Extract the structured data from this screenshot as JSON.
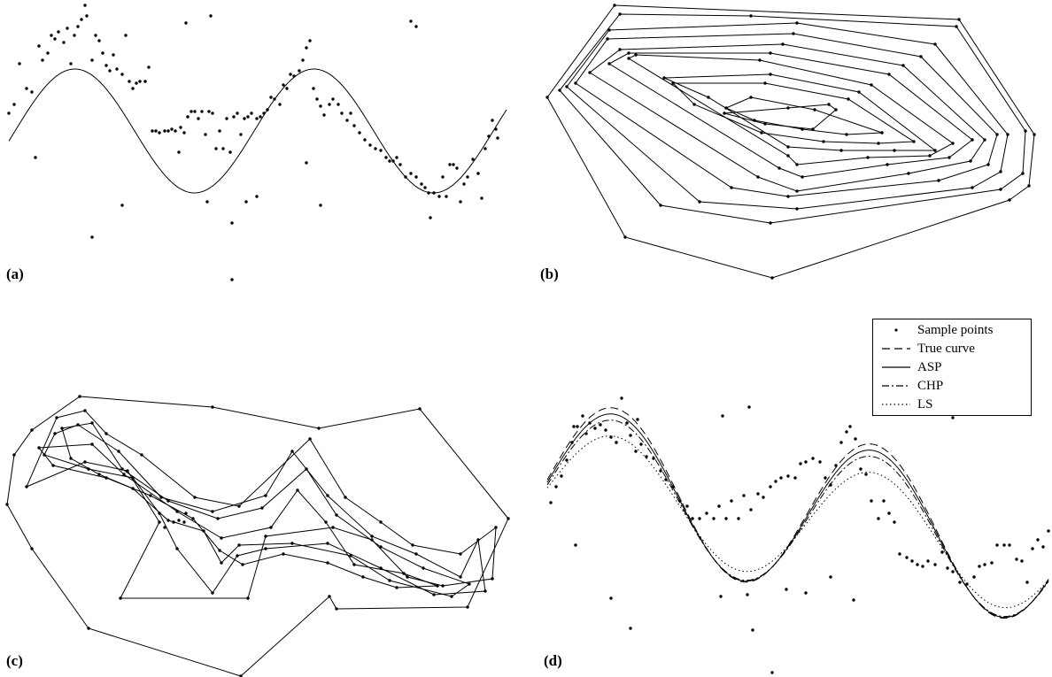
{
  "labels": {
    "a": "(a)",
    "b": "(b)",
    "c": "(c)",
    "d": "(d)"
  },
  "legend": {
    "sample": "Sample points",
    "true_curve": "True curve",
    "asp": "ASP",
    "chp": "CHP",
    "ls": "LS"
  },
  "colors": {
    "ink": "#000000",
    "background": "#ffffff"
  }
}
